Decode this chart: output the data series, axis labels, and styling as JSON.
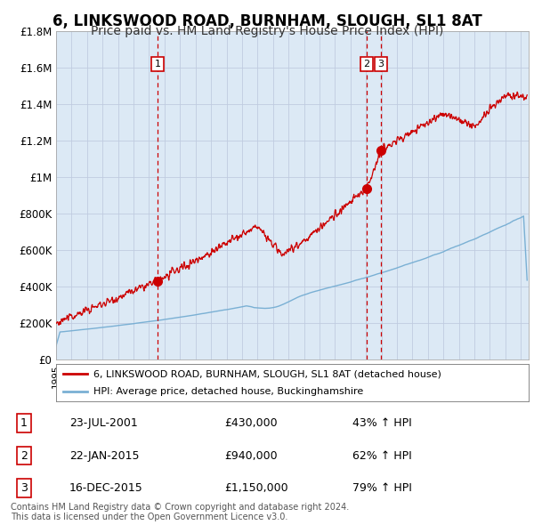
{
  "title": "6, LINKSWOOD ROAD, BURNHAM, SLOUGH, SL1 8AT",
  "subtitle": "Price paid vs. HM Land Registry's House Price Index (HPI)",
  "title_fontsize": 12,
  "subtitle_fontsize": 10,
  "fig_bg_color": "#ffffff",
  "plot_bg_color": "#dce9f5",
  "ytick_labels": [
    "£0",
    "£200K",
    "£400K",
    "£600K",
    "£800K",
    "£1M",
    "£1.2M",
    "£1.4M",
    "£1.6M",
    "£1.8M"
  ],
  "ytick_values": [
    0,
    200000,
    400000,
    600000,
    800000,
    1000000,
    1200000,
    1400000,
    1600000,
    1800000
  ],
  "ylim": [
    0,
    1800000
  ],
  "xlim_start": 1995.0,
  "xlim_end": 2025.5,
  "sale_events": [
    {
      "num": 1,
      "price": 430000,
      "year": 2001.55
    },
    {
      "num": 2,
      "price": 940000,
      "year": 2015.05
    },
    {
      "num": 3,
      "price": 1150000,
      "year": 2015.96
    }
  ],
  "legend_line1": "6, LINKSWOOD ROAD, BURNHAM, SLOUGH, SL1 8AT (detached house)",
  "legend_line2": "HPI: Average price, detached house, Buckinghamshire",
  "footer_line1": "Contains HM Land Registry data © Crown copyright and database right 2024.",
  "footer_line2": "This data is licensed under the Open Government Licence v3.0.",
  "red_line_color": "#cc0000",
  "blue_line_color": "#7ab0d4",
  "grid_color": "#c0cce0",
  "table_rows": [
    {
      "num": "1",
      "date": "23-JUL-2001",
      "price": "£430,000",
      "pct": "43% ↑ HPI"
    },
    {
      "num": "2",
      "date": "22-JAN-2015",
      "price": "£940,000",
      "pct": "62% ↑ HPI"
    },
    {
      "num": "3",
      "date": "16-DEC-2015",
      "price": "£1,150,000",
      "pct": "79% ↑ HPI"
    }
  ]
}
